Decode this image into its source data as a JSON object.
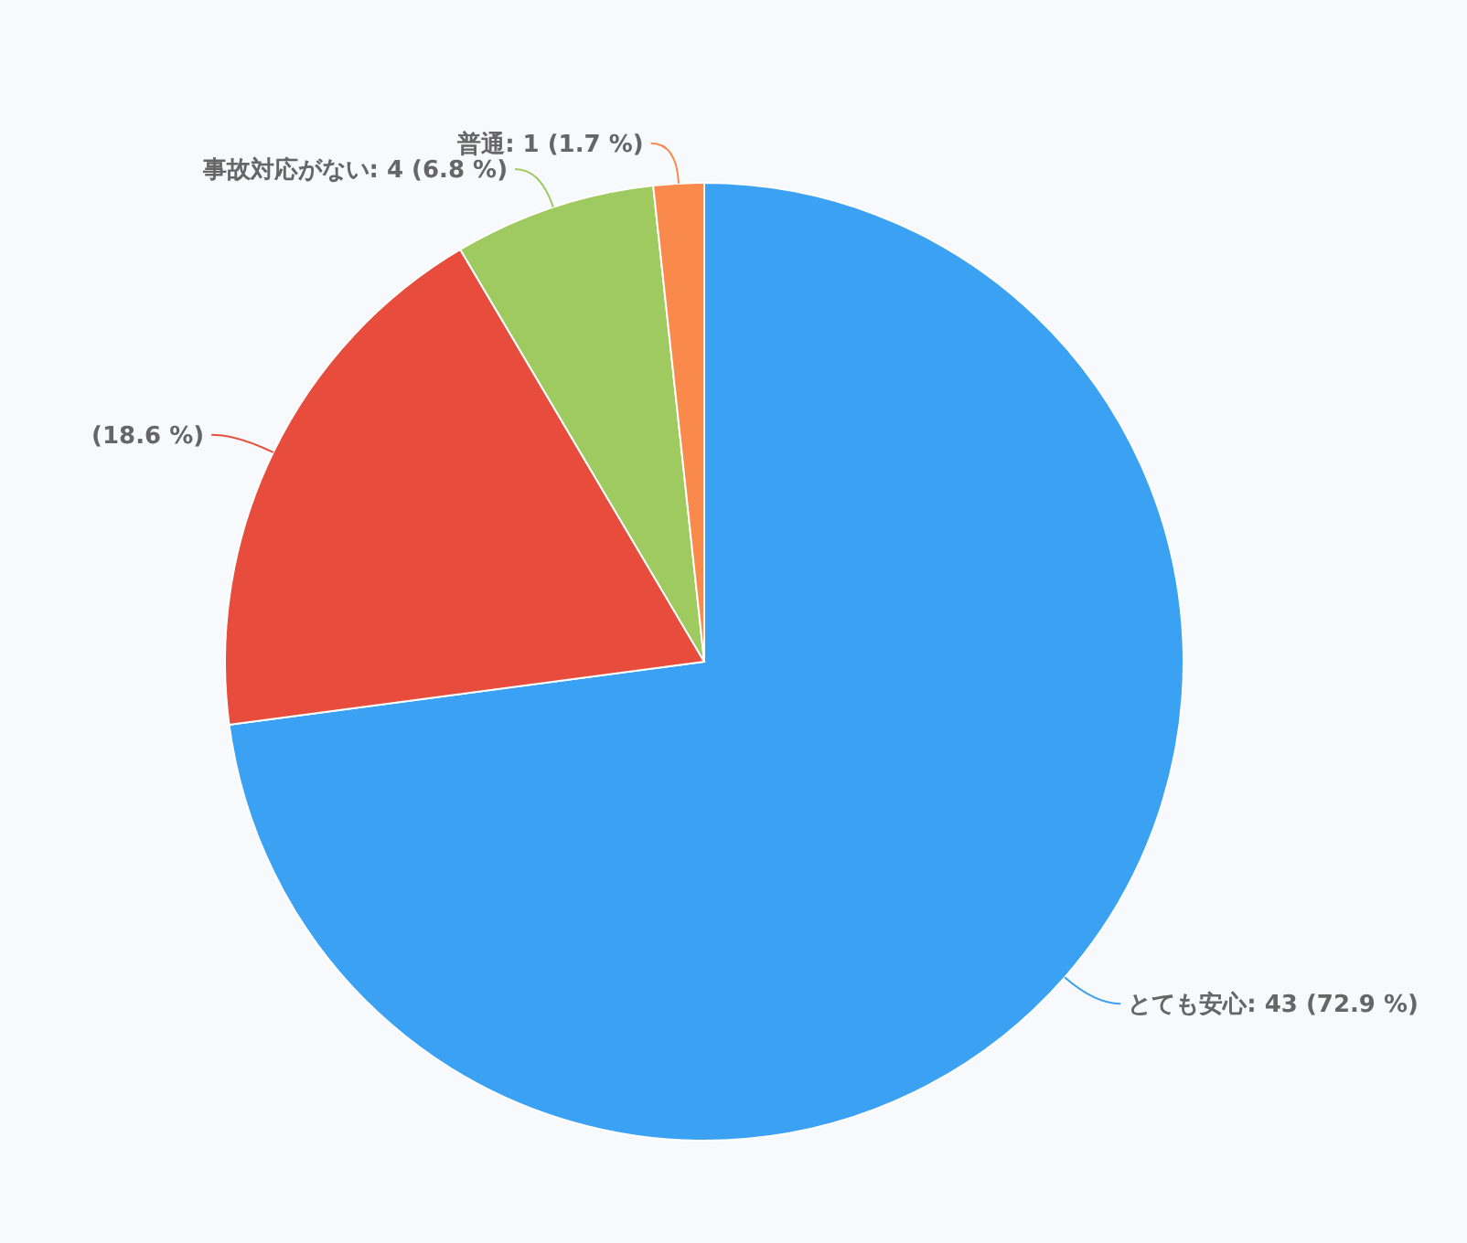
{
  "chart_data": {
    "type": "pie",
    "categories": [
      "とても安心",
      null,
      "事故対応がない",
      "普通"
    ],
    "values": [
      72.9,
      18.6,
      6.8,
      1.7
    ],
    "colors": [
      "#3ba2f3",
      "#e74c3c",
      "#9fca5f",
      "#f98a4b"
    ],
    "value_labels": [
      ": 43 (72.9 %)",
      "(18.6 %)",
      ": 4 (6.8 %)",
      ": 1 (1.7 %)"
    ]
  }
}
